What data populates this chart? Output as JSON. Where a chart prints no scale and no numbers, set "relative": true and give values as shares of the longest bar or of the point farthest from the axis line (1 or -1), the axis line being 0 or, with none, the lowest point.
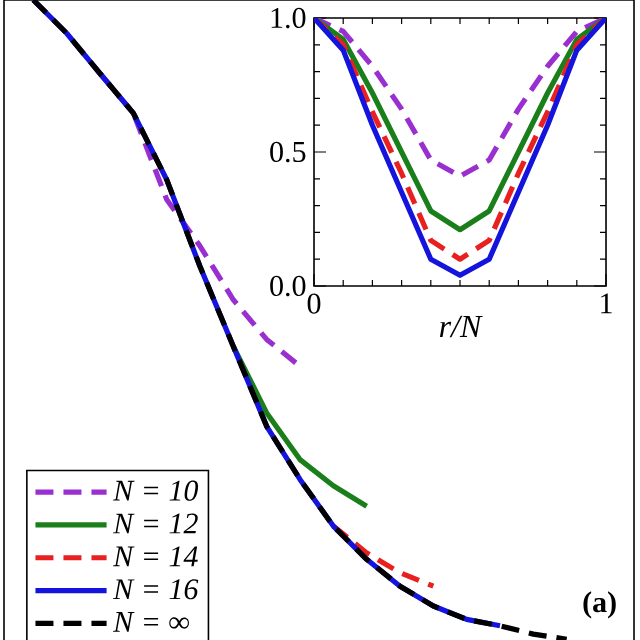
{
  "chart_data": [
    {
      "type": "line",
      "relative": true,
      "legend": "bottom left",
      "annotations": [
        "(a)"
      ],
      "categories": [
        null,
        null,
        null,
        null,
        null,
        null,
        null,
        null,
        null,
        null,
        null,
        null,
        null,
        null,
        null,
        null,
        null
      ],
      "series": [
        {
          "name": "N = 10",
          "color": "#9a2fd0",
          "line_style": "dashed",
          "values": [
            null,
            null,
            0.885,
            0.823,
            0.688,
            0.615,
            0.531,
            0.469,
            0.427,
            null,
            null,
            null,
            null,
            null,
            null,
            null,
            null
          ]
        },
        {
          "name": "N = 12",
          "color": "#1a7f1a",
          "line_style": "solid",
          "values": [
            null,
            null,
            null,
            null,
            null,
            null,
            0.458,
            0.354,
            0.281,
            0.24,
            0.208,
            null,
            null,
            null,
            null,
            null,
            null
          ]
        },
        {
          "name": "N = 14",
          "color": "#e82020",
          "line_style": "dashed",
          "values": [
            null,
            null,
            null,
            null,
            null,
            null,
            null,
            null,
            null,
            0.177,
            0.135,
            0.104,
            0.083,
            null,
            null,
            null,
            null
          ]
        },
        {
          "name": "N = 16",
          "color": "#1414dc",
          "line_style": "solid",
          "values": [
            1.0,
            0.948,
            0.885,
            0.823,
            0.719,
            0.583,
            0.458,
            0.333,
            0.25,
            0.177,
            0.125,
            0.083,
            0.052,
            0.031,
            0.021,
            null,
            null
          ]
        },
        {
          "name": "N = ∞",
          "color": "#000000",
          "line_style": "dashed",
          "values": [
            1.0,
            0.948,
            0.885,
            0.823,
            0.719,
            0.583,
            0.458,
            0.333,
            0.25,
            0.177,
            0.125,
            0.083,
            0.052,
            0.031,
            0.021,
            0.008,
            0.0
          ]
        }
      ]
    },
    {
      "type": "line",
      "xlabel": "r/N",
      "xlim": [
        0,
        1
      ],
      "ylim": [
        0,
        1
      ],
      "xticks": [
        0,
        1
      ],
      "yticks": [
        {
          "value": 0,
          "label": "0.0"
        },
        {
          "value": 0.5,
          "label": "0.5"
        },
        {
          "value": 1,
          "label": "1.0"
        }
      ],
      "x": [
        0,
        0.1,
        0.2,
        0.3,
        0.4,
        0.5,
        0.6,
        0.7,
        0.8,
        0.9,
        1
      ],
      "series": [
        {
          "color": "#9a2fd0",
          "line_style": "dashed",
          "values": [
            1,
            0.95,
            0.82,
            0.66,
            0.47,
            0.41,
            0.47,
            0.66,
            0.82,
            0.95,
            1
          ]
        },
        {
          "color": "#1a7f1a",
          "line_style": "solid",
          "values": [
            1,
            0.92,
            0.72,
            0.5,
            0.28,
            0.21,
            0.28,
            0.5,
            0.72,
            0.92,
            1
          ]
        },
        {
          "color": "#e82020",
          "line_style": "dashed",
          "values": [
            1,
            0.9,
            0.65,
            0.42,
            0.17,
            0.1,
            0.17,
            0.42,
            0.65,
            0.9,
            1
          ]
        },
        {
          "color": "#1414dc",
          "line_style": "solid",
          "values": [
            1,
            0.88,
            0.6,
            0.35,
            0.1,
            0.04,
            0.1,
            0.35,
            0.6,
            0.88,
            1
          ]
        }
      ]
    }
  ]
}
